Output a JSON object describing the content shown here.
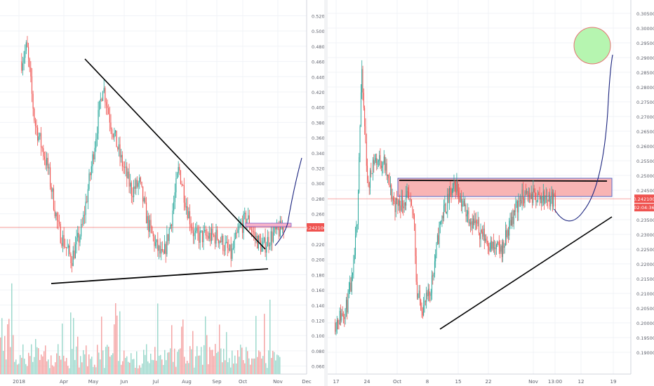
{
  "chart_data": [
    {
      "type": "candlestick",
      "x_labels": [
        "2018",
        "Apr",
        "May",
        "Jun",
        "Jul",
        "Aug",
        "Sep",
        "Oct",
        "Nov",
        "Dec"
      ],
      "y_ticks": [
        "0.520000",
        "0.500000",
        "0.480000",
        "0.460000",
        "0.440000",
        "0.420000",
        "0.400000",
        "0.380000",
        "0.360000",
        "0.340000",
        "0.320000",
        "0.300000",
        "0.280000",
        "0.260000",
        "0.240000",
        "0.220000",
        "0.200000",
        "0.180000",
        "0.160000",
        "0.140000",
        "0.120000",
        "0.100000",
        "0.080000",
        "0.060000"
      ],
      "ylim": [
        0.06,
        0.52
      ],
      "current_price": "0.242100",
      "grid": true,
      "colors": {
        "up": "#26a69a",
        "down": "#ef5350",
        "line": "#000000",
        "projection": "#1a237e",
        "price_line": "#ef5350"
      }
    },
    {
      "type": "candlestick",
      "x_labels": [
        "17",
        "24",
        "Oct",
        "8",
        "15",
        "22",
        "Nov",
        "13:00",
        "12",
        "19"
      ],
      "y_ticks": [
        "0.305000",
        "0.300000",
        "0.295000",
        "0.290000",
        "0.285000",
        "0.280000",
        "0.275000",
        "0.270000",
        "0.265000",
        "0.260000",
        "0.255000",
        "0.250000",
        "0.245000",
        "0.240000",
        "0.235000",
        "0.230000",
        "0.225000",
        "0.220000",
        "0.215000",
        "0.210000",
        "0.205000",
        "0.200000",
        "0.195000",
        "0.190000"
      ],
      "ylim": [
        0.19,
        0.305
      ],
      "current_price": "0.242100",
      "countdown": "02:04:36",
      "grid": true,
      "colors": {
        "up": "#26a69a",
        "down": "#ef5350",
        "line": "#000000",
        "projection": "#1a237e",
        "zone": "#f8b4b4",
        "target": "#b6f5b0"
      }
    }
  ]
}
